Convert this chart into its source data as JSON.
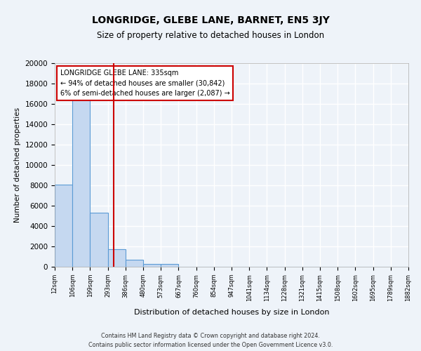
{
  "title": "LONGRIDGE, GLEBE LANE, BARNET, EN5 3JY",
  "subtitle": "Size of property relative to detached houses in London",
  "xlabel": "Distribution of detached houses by size in London",
  "ylabel": "Number of detached properties",
  "bar_heights": [
    8100,
    16600,
    5300,
    1750,
    700,
    250,
    250,
    0,
    0,
    0,
    0,
    0,
    0,
    0,
    0,
    0,
    0,
    0,
    0,
    0
  ],
  "bin_labels": [
    "12sqm",
    "106sqm",
    "199sqm",
    "293sqm",
    "386sqm",
    "480sqm",
    "573sqm",
    "667sqm",
    "760sqm",
    "854sqm",
    "947sqm",
    "1041sqm",
    "1134sqm",
    "1228sqm",
    "1321sqm",
    "1415sqm",
    "1508sqm",
    "1602sqm",
    "1695sqm",
    "1789sqm",
    "1882sqm"
  ],
  "bar_color": "#c5d8f0",
  "bar_edge_color": "#5b9bd5",
  "vline_x": 3.35,
  "vline_color": "#cc0000",
  "ylim": [
    0,
    20000
  ],
  "yticks": [
    0,
    2000,
    4000,
    6000,
    8000,
    10000,
    12000,
    14000,
    16000,
    18000,
    20000
  ],
  "annotation_title": "LONGRIDGE GLEBE LANE: 335sqm",
  "annotation_line1": "← 94% of detached houses are smaller (30,842)",
  "annotation_line2": "6% of semi-detached houses are larger (2,087) →",
  "annotation_box_color": "#ffffff",
  "annotation_box_edge": "#cc0000",
  "footer_line1": "Contains HM Land Registry data © Crown copyright and database right 2024.",
  "footer_line2": "Contains public sector information licensed under the Open Government Licence v3.0.",
  "background_color": "#eef3f9",
  "plot_bg_color": "#eef3f9",
  "grid_color": "#ffffff"
}
